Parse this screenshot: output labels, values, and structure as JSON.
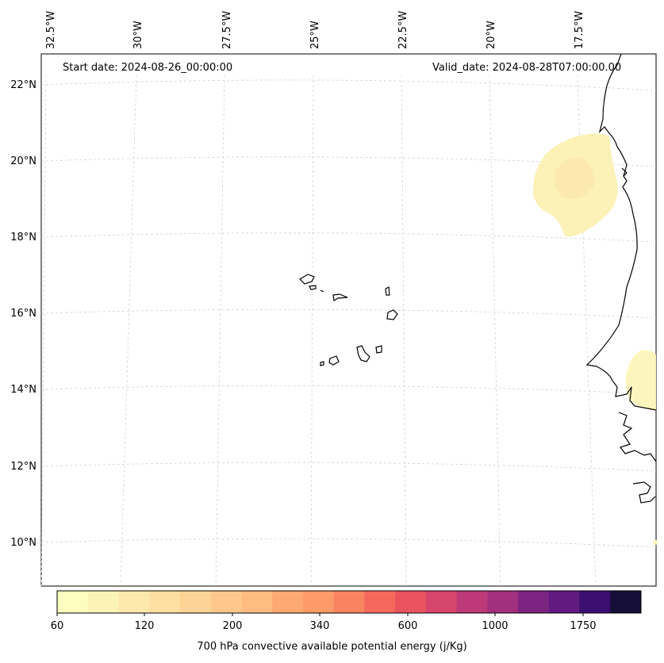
{
  "header": {
    "start_date": "Start date: 2024-08-26_00:00:00",
    "valid_date": "Valid_date: 2024-08-28T07:00:00.00"
  },
  "lon_labels": [
    "32.5°W",
    "30°W",
    "27.5°W",
    "25°W",
    "22.5°W",
    "20°W",
    "17.5°W"
  ],
  "lat_labels": [
    "22°N",
    "20°N",
    "18°N",
    "16°N",
    "14°N",
    "12°N",
    "10°N"
  ],
  "colorbar": {
    "title": "700 hPa convective available potential energy (j/Kg)",
    "tick_labels": [
      "60",
      "120",
      "200",
      "340",
      "600",
      "1000",
      "1750"
    ],
    "colors": [
      "#fcfdbf",
      "#fcf3b6",
      "#fce9ab",
      "#fddfa1",
      "#fdd496",
      "#fec88c",
      "#febc82",
      "#fea973",
      "#fe9a6a",
      "#f98460",
      "#f4695c",
      "#e8535e",
      "#d6456c",
      "#bd3977",
      "#a3307e",
      "#7d2382",
      "#611a7f",
      "#3b0f70",
      "#150e37"
    ]
  }
}
